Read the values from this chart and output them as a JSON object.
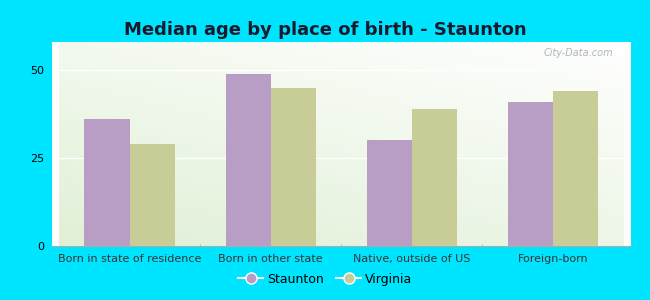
{
  "title": "Median age by place of birth - Staunton",
  "categories": [
    "Born in state of residence",
    "Born in other state",
    "Native, outside of US",
    "Foreign-born"
  ],
  "staunton_values": [
    36,
    49,
    30,
    41
  ],
  "virginia_values": [
    29,
    45,
    39,
    44
  ],
  "staunton_color": "#b89ec4",
  "virginia_color": "#c8cc96",
  "background_outer": "#00e5ff",
  "yticks": [
    0,
    25,
    50
  ],
  "ylim": [
    0,
    58
  ],
  "bar_width": 0.32,
  "legend_labels": [
    "Staunton",
    "Virginia"
  ],
  "title_fontsize": 13,
  "tick_fontsize": 8,
  "legend_fontsize": 9,
  "watermark": "City-Data.com"
}
